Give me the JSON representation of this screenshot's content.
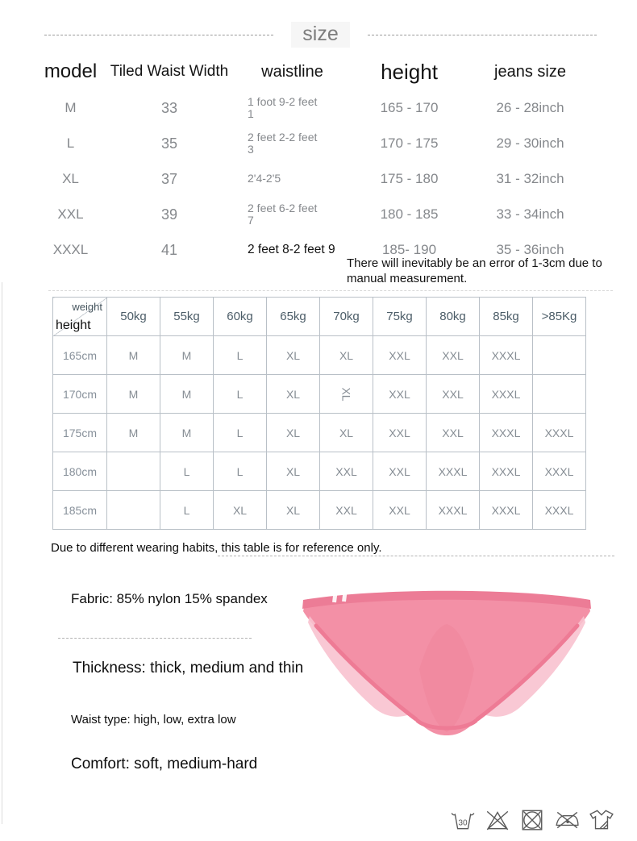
{
  "header": {
    "title": "size"
  },
  "size_table": {
    "columns": [
      "model",
      "Tiled Waist Width",
      "waistline",
      "height",
      "jeans size"
    ],
    "rows": [
      [
        "M",
        "33",
        "1 foot 9-2 feet\n1",
        "165 - 170",
        "26 - 28inch"
      ],
      [
        "L",
        "35",
        "2 feet 2-2 feet\n3",
        "170 - 175",
        "29 - 30inch"
      ],
      [
        "XL",
        "37",
        "2'4-2'5",
        "175 - 180",
        "31 - 32inch"
      ],
      [
        "XXL",
        "39",
        "2 feet 6-2 feet\n7",
        "180 - 185",
        "33 - 34inch"
      ],
      [
        "XXXL",
        "41",
        "2 feet 8-2 feet 9",
        "185- 190",
        "35 - 36inch"
      ]
    ],
    "note": "There will inevitably be an error of 1-3cm due to manual measurement."
  },
  "matrix_table": {
    "corner_top": "weight",
    "corner_bottom": "height",
    "weight_headers": [
      "50kg",
      "55kg",
      "60kg",
      "65kg",
      "70kg",
      "75kg",
      "80kg",
      "85kg",
      ">85Kg"
    ],
    "rows": [
      {
        "height": "165cm",
        "cells": [
          "M",
          "M",
          "L",
          "XL",
          "XL",
          "XXL",
          "XXL",
          "XXXL",
          ""
        ]
      },
      {
        "height": "170cm",
        "cells": [
          "M",
          "M",
          "L",
          "XL",
          "XL",
          "XXL",
          "XXL",
          "XXXL",
          ""
        ]
      },
      {
        "height": "175cm",
        "cells": [
          "M",
          "M",
          "L",
          "XL",
          "XL",
          "XXL",
          "XXL",
          "XXXL",
          "XXXL"
        ]
      },
      {
        "height": "180cm",
        "cells": [
          "",
          "L",
          "L",
          "XL",
          "XXL",
          "XXL",
          "XXXL",
          "XXXL",
          "XXXL"
        ]
      },
      {
        "height": "185cm",
        "cells": [
          "",
          "L",
          "XL",
          "XL",
          "XXL",
          "XXL",
          "XXXL",
          "XXXL",
          "XXXL"
        ]
      }
    ],
    "rotated_cell": {
      "row": 1,
      "col": 4
    },
    "note": "Due to different wearing habits, this table is for reference only."
  },
  "details": {
    "fabric": "Fabric: 85% nylon 15% spandex",
    "thickness": "Thickness: thick, medium and thin",
    "waist_type": "Waist type: high, low, extra low",
    "comfort": "Comfort: soft, medium-hard"
  },
  "care": {
    "wash_temp_label": "30"
  },
  "colors": {
    "product_pink": "#f390a6",
    "product_pink_dark": "#ec7c96",
    "product_pink_light": "#f8c2cf",
    "table_border": "#b9c0c7",
    "text_gray": "#85888c",
    "text_dark": "#1c1c1c"
  }
}
